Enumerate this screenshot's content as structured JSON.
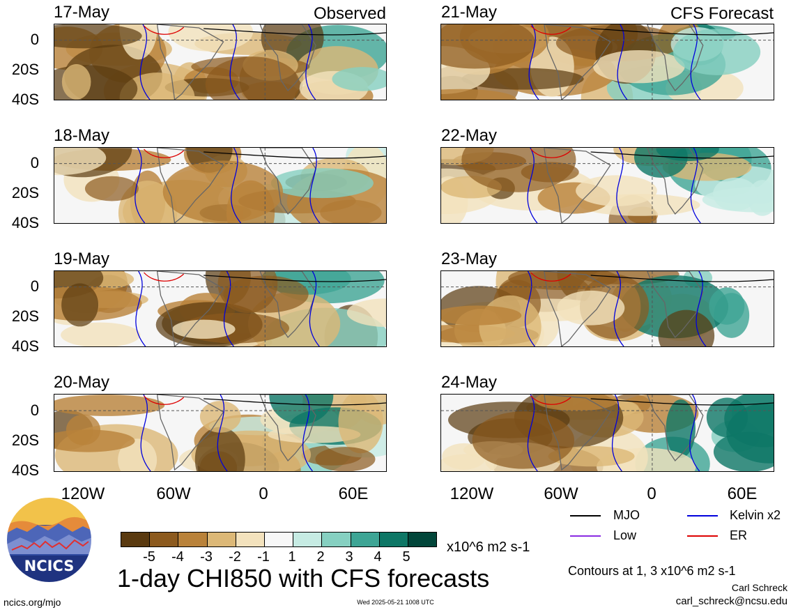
{
  "left_header": "Observed",
  "right_header": "CFS Forecast",
  "left_dates": [
    "17-May",
    "18-May",
    "19-May",
    "20-May"
  ],
  "right_dates": [
    "21-May",
    "22-May",
    "23-May",
    "24-May"
  ],
  "y_ticks": [
    "0",
    "20S",
    "40S"
  ],
  "x_ticks": [
    "120W",
    "60W",
    "0",
    "60E"
  ],
  "colorbar": {
    "ticks": [
      "-5",
      "-4",
      "-3",
      "-2",
      "-1",
      "1",
      "2",
      "3",
      "4",
      "5"
    ],
    "units": "x10^6 m2 s-1",
    "colors": [
      "#5a3a10",
      "#8c5a1e",
      "#b9823a",
      "#dcb877",
      "#f3e2bd",
      "#f7f7f7",
      "#c6ebe3",
      "#86d0c1",
      "#3ea595",
      "#0e7766",
      "#02463a"
    ]
  },
  "legend": {
    "mjo": "MJO",
    "kelvin": "Kelvin x2",
    "low": "Low",
    "er": "ER",
    "colors": {
      "mjo": "#000000",
      "kelvin": "#0000dd",
      "low": "#8a2be2",
      "er": "#dd0000"
    }
  },
  "title": "1-day CHI850 with CFS forecasts",
  "contour_note": "Contours at 1, 3 x10^6 m2 s-1",
  "author": "Carl Schreck",
  "email": "carl_schreck@ncsu.edu",
  "url": "ncics.org/mjo",
  "timestamp": "Wed 2025-05-21 1008 UTC",
  "logo_text": "NCICS"
}
